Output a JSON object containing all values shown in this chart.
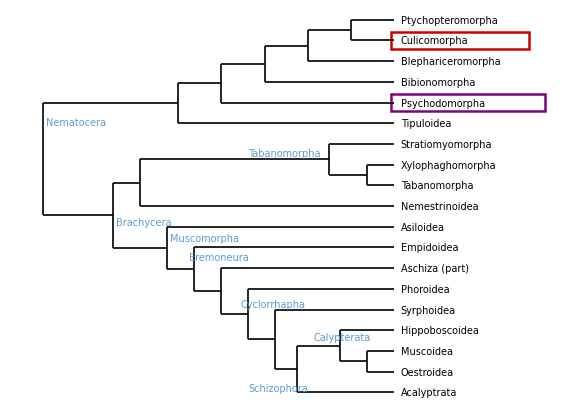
{
  "background_color": "#ffffff",
  "leaf_labels": [
    "Ptychopteromorpha",
    "Culicomorpha",
    "Blephariceromorpha",
    "Bibionomorpha",
    "Psychodomorpha",
    "Tipuloidea",
    "Stratiomyomorpha",
    "Xylophaghomorpha",
    "Tabanomorpha",
    "Nemestrinoidea",
    "Asiloidea",
    "Empidoidea",
    "Aschiza (part)",
    "Phoroidea",
    "Syrphoidea",
    "Hippoboscoidea",
    "Muscoidea",
    "Oestroidea",
    "Acalyptrata"
  ],
  "leaf_y": [
    19,
    18,
    17,
    16,
    15,
    14,
    13,
    12,
    11,
    10,
    9,
    8,
    7,
    6,
    5,
    4,
    3,
    2,
    1
  ],
  "culicomorpha_box_color": "#cc0000",
  "psychodomorpha_box_color": "#800080",
  "line_color": "#000000",
  "line_width": 1.2,
  "label_fontsize": 7.0,
  "clade_fontsize": 7.0,
  "blue_color": "#5B9BD5"
}
